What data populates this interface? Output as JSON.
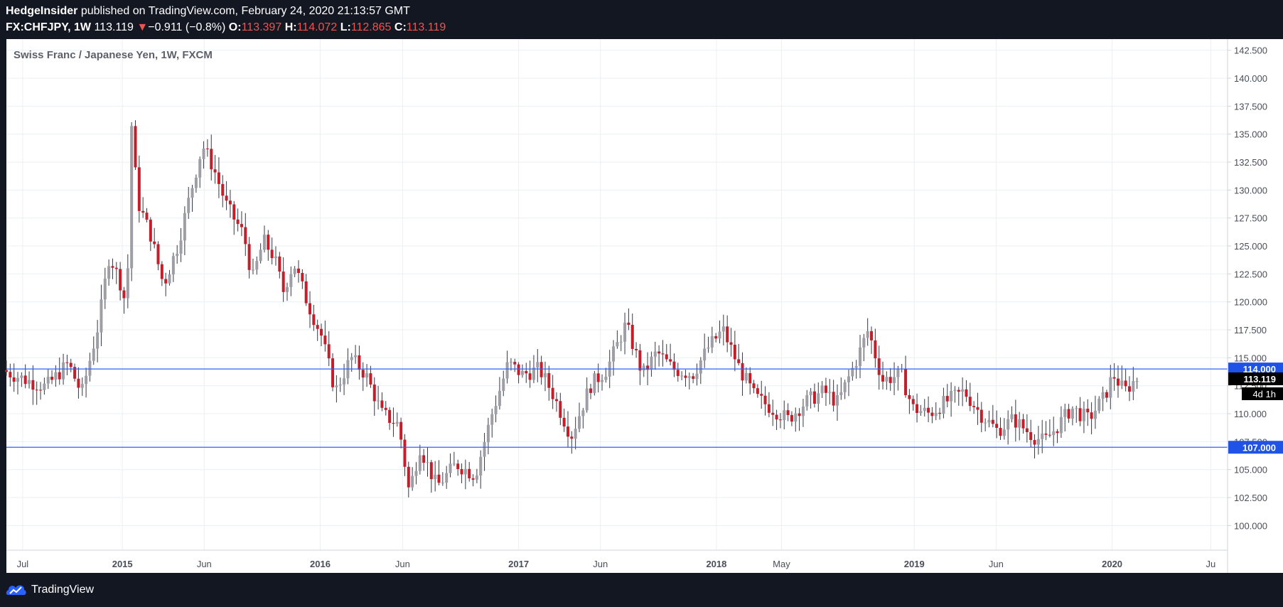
{
  "header": {
    "publisher": "HedgeInsider",
    "published_text": "published on TradingView.com, February 24, 2020 21:13:57 GMT",
    "symbol": "FX:CHFJPY, 1W",
    "last": "113.119",
    "change_arrow": "▼",
    "change": "−0.911 (−0.8%)",
    "o_label": "O:",
    "o_value": "113.397",
    "h_label": "H:",
    "h_value": "114.072",
    "l_label": "L:",
    "l_value": "112.865",
    "c_label": "C:",
    "c_value": "113.119"
  },
  "footer": {
    "brand": "TradingView",
    "logo_icon": "tradingview-logo-icon"
  },
  "colors": {
    "up": "#9e9ea6",
    "down": "#c41e2a",
    "line": "#2962ff",
    "grid": "#eceff2"
  },
  "chart_data": {
    "type": "candlestick",
    "title": "Swiss Franc / Japanese Yen, 1W, FXCM",
    "ylim": [
      97.8,
      143.5
    ],
    "y_ticks": [
      "142.500",
      "140.000",
      "137.500",
      "135.000",
      "132.500",
      "130.000",
      "127.500",
      "125.000",
      "122.500",
      "120.000",
      "117.500",
      "115.000",
      "112.500",
      "110.000",
      "107.500",
      "105.000",
      "102.500",
      "100.000"
    ],
    "x_ticks": [
      "Jul",
      "2015",
      "Jun",
      "2016",
      "Jun",
      "2017",
      "Jun",
      "2018",
      "May",
      "2019",
      "Jun",
      "2020",
      "Ju"
    ],
    "x_range": [
      "2014-06-01",
      "2020-08-01"
    ],
    "horizontal_lines": [
      {
        "value": 114.0,
        "label": "114.000"
      },
      {
        "value": 107.0,
        "label": "107.000"
      }
    ],
    "last_price": {
      "value": 113.119,
      "label": "113.119"
    },
    "countdown": "4d 1h",
    "anchors": [
      [
        "2014-06-01",
        113.9
      ],
      [
        "2014-07-15",
        113.0
      ],
      [
        "2014-08-20",
        112.4
      ],
      [
        "2014-09-30",
        114.5
      ],
      [
        "2014-10-25",
        111.8
      ],
      [
        "2014-11-25",
        118.0
      ],
      [
        "2014-12-15",
        124.2
      ],
      [
        "2015-01-10",
        121.0
      ],
      [
        "2015-01-16",
        117.5
      ],
      [
        "2015-01-23",
        137.0
      ],
      [
        "2015-02-05",
        129.0
      ],
      [
        "2015-03-01",
        126.0
      ],
      [
        "2015-03-25",
        121.5
      ],
      [
        "2015-04-20",
        125.0
      ],
      [
        "2015-05-15",
        130.0
      ],
      [
        "2015-06-05",
        134.0
      ],
      [
        "2015-06-25",
        132.0
      ],
      [
        "2015-07-20",
        128.5
      ],
      [
        "2015-08-20",
        126.0
      ],
      [
        "2015-09-05",
        122.0
      ],
      [
        "2015-09-25",
        125.5
      ],
      [
        "2015-10-15",
        124.0
      ],
      [
        "2015-11-01",
        121.0
      ],
      [
        "2015-11-20",
        123.5
      ],
      [
        "2015-12-15",
        120.0
      ],
      [
        "2016-01-10",
        117.0
      ],
      [
        "2016-02-05",
        112.0
      ],
      [
        "2016-03-05",
        115.0
      ],
      [
        "2016-04-01",
        113.5
      ],
      [
        "2016-05-01",
        110.0
      ],
      [
        "2016-06-01",
        109.0
      ],
      [
        "2016-06-20",
        103.0
      ],
      [
        "2016-07-10",
        107.0
      ],
      [
        "2016-08-10",
        103.5
      ],
      [
        "2016-09-15",
        105.5
      ],
      [
        "2016-10-20",
        104.5
      ],
      [
        "2016-11-20",
        110.0
      ],
      [
        "2016-12-20",
        114.5
      ],
      [
        "2017-01-15",
        113.5
      ],
      [
        "2017-02-15",
        114.0
      ],
      [
        "2017-03-10",
        112.0
      ],
      [
        "2017-04-15",
        108.0
      ],
      [
        "2017-05-20",
        112.5
      ],
      [
        "2017-06-20",
        114.0
      ],
      [
        "2017-07-25",
        118.0
      ],
      [
        "2017-08-25",
        113.5
      ],
      [
        "2017-09-20",
        115.5
      ],
      [
        "2017-10-20",
        114.0
      ],
      [
        "2017-11-25",
        113.5
      ],
      [
        "2017-12-25",
        116.0
      ],
      [
        "2018-01-20",
        117.5
      ],
      [
        "2018-02-20",
        114.0
      ],
      [
        "2018-03-20",
        111.5
      ],
      [
        "2018-04-20",
        110.5
      ],
      [
        "2018-05-20",
        109.5
      ],
      [
        "2018-06-20",
        111.0
      ],
      [
        "2018-07-25",
        112.0
      ],
      [
        "2018-08-20",
        111.0
      ],
      [
        "2018-09-25",
        115.0
      ],
      [
        "2018-10-15",
        117.5
      ],
      [
        "2018-11-10",
        113.0
      ],
      [
        "2018-12-15",
        113.5
      ],
      [
        "2019-01-05",
        110.5
      ],
      [
        "2019-02-05",
        110.0
      ],
      [
        "2019-03-05",
        111.0
      ],
      [
        "2019-04-10",
        112.0
      ],
      [
        "2019-05-10",
        110.0
      ],
      [
        "2019-06-10",
        108.5
      ],
      [
        "2019-07-10",
        109.5
      ],
      [
        "2019-08-15",
        108.0
      ],
      [
        "2019-09-05",
        107.5
      ],
      [
        "2019-10-01",
        109.0
      ],
      [
        "2019-10-25",
        110.5
      ],
      [
        "2019-11-25",
        109.5
      ],
      [
        "2019-12-25",
        111.5
      ],
      [
        "2020-01-10",
        113.5
      ],
      [
        "2020-01-31",
        112.0
      ],
      [
        "2020-02-21",
        113.119
      ]
    ]
  }
}
